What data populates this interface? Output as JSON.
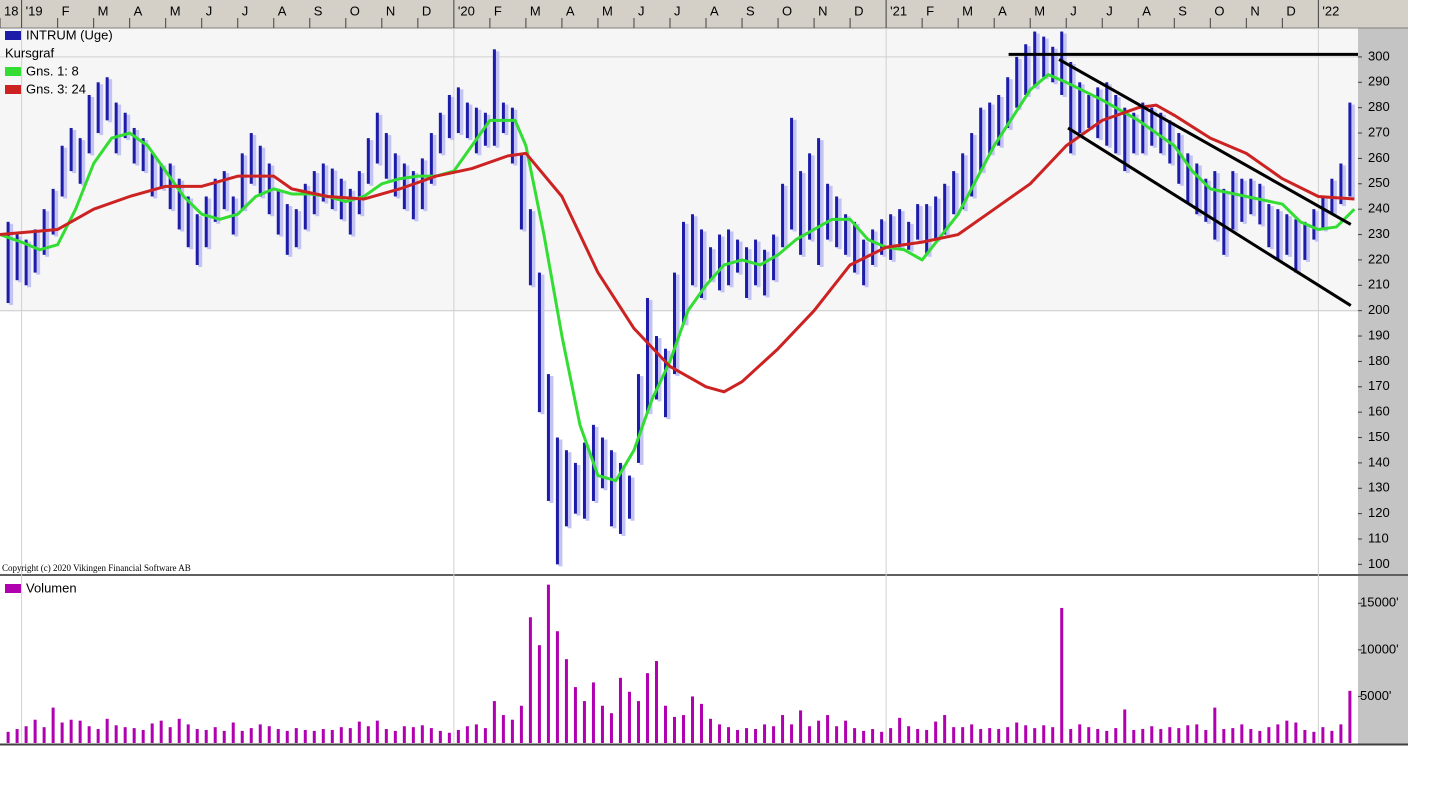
{
  "chart_data": {
    "type": "range",
    "legend_title": "Kursgraf",
    "copyright": "Copyright (c) 2020 Vikingen Financial Software AB",
    "xlim": [
      -0.6,
      37.1
    ],
    "xticks": [
      {
        "value": -0.6,
        "label": "18"
      },
      {
        "value": 0,
        "label": "'19"
      },
      {
        "value": 1,
        "label": "F"
      },
      {
        "value": 2,
        "label": "M"
      },
      {
        "value": 3,
        "label": "A"
      },
      {
        "value": 4,
        "label": "M"
      },
      {
        "value": 5,
        "label": "J"
      },
      {
        "value": 6,
        "label": "J"
      },
      {
        "value": 7,
        "label": "A"
      },
      {
        "value": 8,
        "label": "S"
      },
      {
        "value": 9,
        "label": "O"
      },
      {
        "value": 10,
        "label": "N"
      },
      {
        "value": 11,
        "label": "D"
      },
      {
        "value": 12,
        "label": "'20"
      },
      {
        "value": 13,
        "label": "F"
      },
      {
        "value": 14,
        "label": "M"
      },
      {
        "value": 15,
        "label": "A"
      },
      {
        "value": 16,
        "label": "M"
      },
      {
        "value": 17,
        "label": "J"
      },
      {
        "value": 18,
        "label": "J"
      },
      {
        "value": 19,
        "label": "A"
      },
      {
        "value": 20,
        "label": "S"
      },
      {
        "value": 21,
        "label": "O"
      },
      {
        "value": 22,
        "label": "N"
      },
      {
        "value": 23,
        "label": "D"
      },
      {
        "value": 24,
        "label": "'21"
      },
      {
        "value": 25,
        "label": "F"
      },
      {
        "value": 26,
        "label": "M"
      },
      {
        "value": 27,
        "label": "A"
      },
      {
        "value": 28,
        "label": "M"
      },
      {
        "value": 29,
        "label": "J"
      },
      {
        "value": 30,
        "label": "J"
      },
      {
        "value": 31,
        "label": "A"
      },
      {
        "value": 32,
        "label": "S"
      },
      {
        "value": 33,
        "label": "O"
      },
      {
        "value": 34,
        "label": "N"
      },
      {
        "value": 35,
        "label": "D"
      },
      {
        "value": 36,
        "label": "'22"
      }
    ],
    "ylim": [
      97,
      311.4
    ],
    "yticks": [
      100,
      110,
      120,
      130,
      140,
      150,
      160,
      170,
      180,
      190,
      200,
      210,
      220,
      230,
      240,
      250,
      260,
      270,
      280,
      290,
      300
    ],
    "grid_y": [
      200,
      300
    ],
    "grid_x": [
      0,
      12,
      24,
      36
    ],
    "x": [
      -0.375,
      -0.125,
      0.125,
      0.375,
      0.625,
      0.875,
      1.125,
      1.375,
      1.625,
      1.875,
      2.125,
      2.375,
      2.625,
      2.875,
      3.125,
      3.375,
      3.625,
      3.875,
      4.125,
      4.375,
      4.625,
      4.875,
      5.125,
      5.375,
      5.625,
      5.875,
      6.125,
      6.375,
      6.625,
      6.875,
      7.125,
      7.375,
      7.625,
      7.875,
      8.125,
      8.375,
      8.625,
      8.875,
      9.125,
      9.375,
      9.625,
      9.875,
      10.125,
      10.375,
      10.625,
      10.875,
      11.125,
      11.375,
      11.625,
      11.875,
      12.125,
      12.375,
      12.625,
      12.875,
      13.125,
      13.375,
      13.625,
      13.875,
      14.125,
      14.375,
      14.625,
      14.875,
      15.125,
      15.375,
      15.625,
      15.875,
      16.125,
      16.375,
      16.625,
      16.875,
      17.125,
      17.375,
      17.625,
      17.875,
      18.125,
      18.375,
      18.625,
      18.875,
      19.125,
      19.375,
      19.625,
      19.875,
      20.125,
      20.375,
      20.625,
      20.875,
      21.125,
      21.375,
      21.625,
      21.875,
      22.125,
      22.375,
      22.625,
      22.875,
      23.125,
      23.375,
      23.625,
      23.875,
      24.125,
      24.375,
      24.625,
      24.875,
      25.125,
      25.375,
      25.625,
      25.875,
      26.125,
      26.375,
      26.625,
      26.875,
      27.125,
      27.375,
      27.625,
      27.875,
      28.125,
      28.375,
      28.625,
      28.875,
      29.125,
      29.375,
      29.625,
      29.875,
      30.125,
      30.375,
      30.625,
      30.875,
      31.125,
      31.375,
      31.625,
      31.875,
      32.125,
      32.375,
      32.625,
      32.875,
      33.125,
      33.375,
      33.625,
      33.875,
      34.125,
      34.375,
      34.625,
      34.875,
      35.125,
      35.375,
      35.625,
      35.875,
      36.125,
      36.375,
      36.625,
      36.875
    ],
    "series": [
      {
        "name": "INTRUM (Uge)",
        "color": "#1c1ca8",
        "low": [
          203,
          212,
          210,
          215,
          222,
          230,
          245,
          255,
          250,
          262,
          270,
          275,
          262,
          268,
          258,
          255,
          245,
          248,
          240,
          232,
          225,
          218,
          225,
          235,
          240,
          230,
          240,
          250,
          245,
          238,
          230,
          222,
          225,
          232,
          238,
          243,
          240,
          236,
          230,
          238,
          250,
          258,
          252,
          245,
          240,
          236,
          240,
          250,
          262,
          268,
          270,
          268,
          262,
          265,
          265,
          270,
          258,
          232,
          210,
          160,
          125,
          100,
          115,
          120,
          118,
          125,
          130,
          115,
          112,
          118,
          140,
          160,
          165,
          158,
          175,
          195,
          210,
          205,
          212,
          208,
          210,
          215,
          205,
          210,
          206,
          212,
          225,
          232,
          222,
          228,
          218,
          228,
          225,
          222,
          215,
          210,
          218,
          222,
          220,
          225,
          224,
          228,
          222,
          228,
          230,
          238,
          240,
          245,
          255,
          262,
          265,
          272,
          280,
          285,
          288,
          292,
          290,
          285,
          262,
          270,
          272,
          268,
          265,
          262,
          255,
          262,
          262,
          265,
          262,
          258,
          250,
          242,
          238,
          235,
          228,
          222,
          232,
          235,
          238,
          234,
          225,
          220,
          222,
          215,
          220,
          228,
          232,
          238,
          242,
          245
        ],
        "high": [
          235,
          230,
          228,
          232,
          240,
          248,
          265,
          272,
          268,
          285,
          290,
          292,
          282,
          278,
          272,
          268,
          262,
          258,
          258,
          252,
          245,
          238,
          245,
          252,
          255,
          245,
          262,
          270,
          265,
          258,
          248,
          242,
          240,
          250,
          255,
          258,
          256,
          252,
          248,
          255,
          268,
          278,
          270,
          262,
          258,
          255,
          260,
          270,
          278,
          285,
          288,
          282,
          280,
          278,
          303,
          282,
          280,
          262,
          240,
          215,
          175,
          150,
          145,
          140,
          148,
          155,
          150,
          145,
          140,
          135,
          175,
          205,
          190,
          185,
          215,
          235,
          238,
          232,
          225,
          230,
          232,
          228,
          225,
          228,
          224,
          230,
          250,
          276,
          255,
          262,
          268,
          250,
          245,
          238,
          235,
          228,
          232,
          236,
          238,
          240,
          235,
          242,
          242,
          245,
          250,
          255,
          262,
          270,
          280,
          282,
          285,
          292,
          300,
          305,
          310,
          308,
          304,
          310,
          298,
          290,
          285,
          288,
          290,
          285,
          280,
          278,
          282,
          280,
          278,
          275,
          270,
          262,
          258,
          252,
          255,
          248,
          255,
          252,
          252,
          250,
          242,
          240,
          238,
          236,
          235,
          240,
          245,
          252,
          258,
          282
        ]
      }
    ],
    "lines": [
      {
        "name": "Gns. 1: 8",
        "color": "#33dd33",
        "x": [
          -0.6,
          0,
          0.5,
          1,
          1.5,
          2,
          2.5,
          3,
          3.5,
          4,
          4.5,
          5,
          5.5,
          6,
          6.5,
          7,
          7.5,
          8,
          8.5,
          9,
          9.5,
          10,
          10.5,
          11,
          11.5,
          12,
          12.5,
          13,
          13.7,
          14,
          14.5,
          15,
          15.5,
          16,
          16.5,
          17,
          17.5,
          18,
          18.5,
          19,
          19.5,
          20,
          20.5,
          21,
          21.5,
          22,
          22.5,
          23,
          23.5,
          24,
          24.5,
          25,
          26,
          27,
          28,
          28.5,
          29,
          30,
          31,
          32,
          32.5,
          33,
          34,
          35,
          35.5,
          36,
          36.5,
          37
        ],
        "values": [
          230,
          227,
          224,
          226,
          240,
          258,
          268,
          270,
          265,
          255,
          245,
          238,
          236,
          238,
          245,
          248,
          246,
          246,
          245,
          243,
          245,
          250,
          252,
          253,
          253,
          255,
          265,
          275,
          275,
          265,
          230,
          190,
          155,
          135,
          133,
          145,
          165,
          180,
          200,
          210,
          218,
          220,
          218,
          222,
          228,
          232,
          236,
          236,
          228,
          225,
          224,
          220,
          238,
          265,
          287,
          293,
          290,
          283,
          275,
          265,
          255,
          248,
          245,
          242,
          235,
          232,
          233,
          240
        ]
      },
      {
        "name": "Gns. 3: 24",
        "color": "#cc2222",
        "x": [
          -0.6,
          1,
          2,
          3,
          4,
          5,
          6,
          7,
          7.5,
          8.5,
          9.5,
          10.5,
          11.5,
          12.5,
          13.5,
          14,
          15,
          16,
          17,
          18,
          19,
          19.5,
          20,
          21,
          22,
          23,
          24,
          25,
          26,
          27,
          28,
          29,
          30,
          31,
          31.5,
          32,
          33,
          34,
          35,
          36,
          37
        ],
        "values": [
          230,
          232,
          240,
          245,
          249,
          249,
          253,
          253,
          248,
          245,
          244,
          248,
          253,
          256,
          261,
          262,
          245,
          215,
          193,
          178,
          170,
          168,
          172,
          185,
          200,
          218,
          225,
          227,
          230,
          240,
          250,
          265,
          275,
          280,
          281,
          277,
          268,
          262,
          252,
          245,
          244
        ]
      }
    ],
    "trendlines": [
      {
        "x": [
          27.4,
          37.1
        ],
        "y": [
          301,
          301
        ]
      },
      {
        "x": [
          28.8,
          36.9
        ],
        "y": [
          299,
          234
        ]
      },
      {
        "x": [
          29.05,
          36.9
        ],
        "y": [
          272,
          202
        ]
      }
    ],
    "volume": {
      "name": "Volumen",
      "color": "#b000b0",
      "ylim": [
        0,
        17500
      ],
      "yticks": [
        {
          "value": 5000,
          "label": "5000'"
        },
        {
          "value": 10000,
          "label": "10000'"
        },
        {
          "value": 15000,
          "label": "15000'"
        }
      ],
      "values": [
        1200,
        1500,
        1800,
        2500,
        1700,
        3800,
        2200,
        2500,
        2400,
        1800,
        1500,
        2600,
        1900,
        1700,
        1600,
        1400,
        2100,
        2400,
        1700,
        2600,
        2000,
        1500,
        1400,
        1700,
        1300,
        2200,
        1300,
        1600,
        2000,
        1800,
        1500,
        1300,
        1600,
        1400,
        1300,
        1500,
        1400,
        1700,
        1600,
        2300,
        1800,
        2400,
        1500,
        1300,
        1800,
        1700,
        1900,
        1600,
        1300,
        1100,
        1400,
        1800,
        2000,
        1600,
        4500,
        3000,
        2500,
        4000,
        13500,
        10500,
        17000,
        12000,
        9000,
        6000,
        4500,
        6500,
        4000,
        3200,
        7000,
        5500,
        4500,
        7500,
        8800,
        4000,
        2800,
        3000,
        5000,
        4200,
        2600,
        2000,
        1700,
        1400,
        1600,
        1500,
        2000,
        1800,
        3000,
        2000,
        3500,
        1800,
        2400,
        3000,
        1800,
        2400,
        1600,
        1300,
        1500,
        1200,
        1600,
        2700,
        1800,
        1500,
        1400,
        2300,
        3000,
        1700,
        1700,
        2000,
        1500,
        1600,
        1500,
        1700,
        2200,
        1900,
        1600,
        1900,
        1700,
        14500,
        1500,
        2000,
        1700,
        1500,
        1300,
        1600,
        3600,
        1400,
        1500,
        1800,
        1500,
        1700,
        1600,
        1900,
        2000,
        1400,
        3800,
        1500,
        1600,
        2000,
        1500,
        1300,
        1700,
        2000,
        2400,
        2200,
        1400,
        1200,
        1700,
        1300,
        2000,
        5600
      ]
    }
  }
}
